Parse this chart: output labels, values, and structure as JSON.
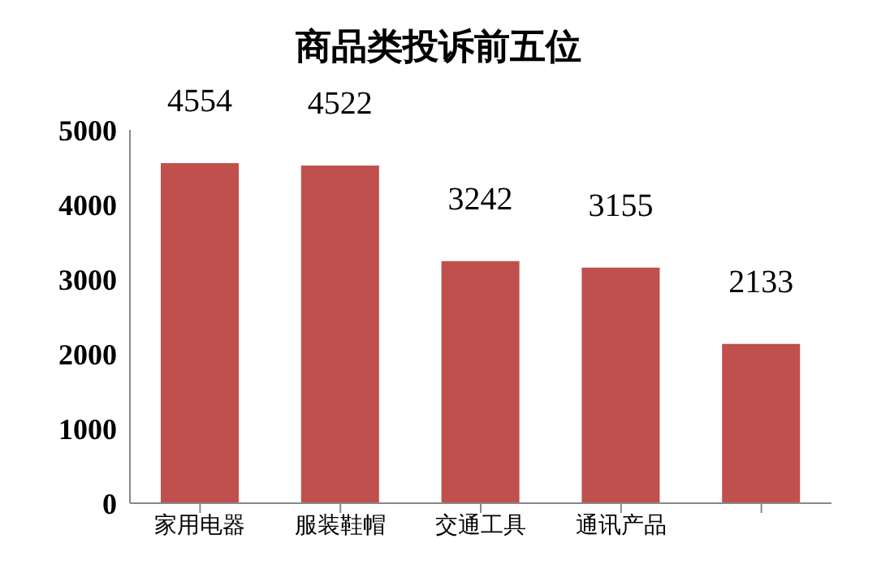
{
  "chart_data": {
    "type": "bar",
    "title": "商品类投诉前五位",
    "categories": [
      "家用电器",
      "服装鞋帽",
      "交通工具",
      "通讯产品",
      null
    ],
    "values": [
      4554,
      4522,
      3242,
      3155,
      2133
    ],
    "color": "#c0504d",
    "ylim": [
      0,
      5000
    ],
    "yticks": [
      0,
      1000,
      2000,
      3000,
      4000,
      5000
    ],
    "data_labels": true,
    "grid": false,
    "legend": false
  }
}
